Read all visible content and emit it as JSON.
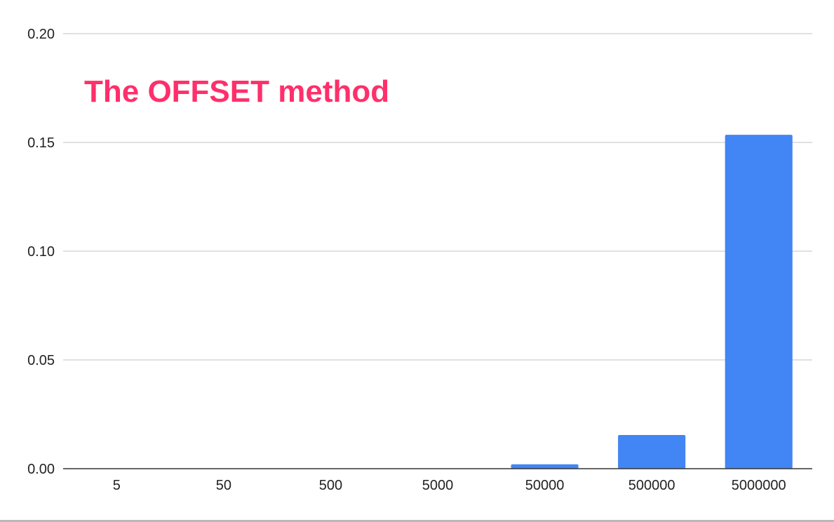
{
  "chart_data": {
    "type": "bar",
    "title": "The OFFSET method",
    "categories": [
      "5",
      "50",
      "500",
      "5000",
      "50000",
      "500000",
      "5000000"
    ],
    "series": [
      {
        "values": [
          0.0,
          0.0,
          0.0,
          0.0,
          0.002,
          0.0155,
          0.1535
        ]
      }
    ],
    "ylim": [
      0,
      0.2
    ],
    "y_ticks": [
      "0.00",
      "0.05",
      "0.10",
      "0.15",
      "0.20"
    ],
    "xlabel": "",
    "ylabel": "",
    "grid": true,
    "legend": "none",
    "colors": {
      "bar": "#4285f4",
      "title": "#ff2f6b"
    }
  }
}
